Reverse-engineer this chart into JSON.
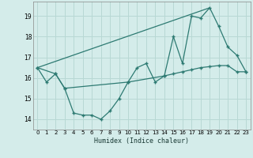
{
  "xlabel": "Humidex (Indice chaleur)",
  "bg_color": "#d4ecea",
  "grid_color": "#b8d8d4",
  "line_color": "#2d7a72",
  "xlim": [
    -0.5,
    23.5
  ],
  "ylim": [
    13.5,
    19.7
  ],
  "xticks": [
    0,
    1,
    2,
    3,
    4,
    5,
    6,
    7,
    8,
    9,
    10,
    11,
    12,
    13,
    14,
    15,
    16,
    17,
    18,
    19,
    20,
    21,
    22,
    23
  ],
  "yticks": [
    14,
    15,
    16,
    17,
    18,
    19
  ],
  "series1_x": [
    0,
    1,
    2,
    3,
    4,
    5,
    6,
    7,
    8,
    9,
    10,
    11,
    12,
    13,
    14,
    15,
    16,
    17,
    18,
    19,
    20,
    21,
    22,
    23
  ],
  "series1_y": [
    16.5,
    15.8,
    16.2,
    15.5,
    14.3,
    14.2,
    14.2,
    14.0,
    14.4,
    15.0,
    15.8,
    16.5,
    16.7,
    15.8,
    16.1,
    18.0,
    16.7,
    19.0,
    18.9,
    19.4,
    18.5,
    17.5,
    17.1,
    16.3
  ],
  "series2_x": [
    0,
    2,
    3,
    10,
    14,
    15,
    16,
    17,
    18,
    19,
    20,
    21,
    22,
    23
  ],
  "series2_y": [
    16.5,
    16.2,
    15.5,
    15.8,
    16.1,
    16.2,
    16.3,
    16.4,
    16.5,
    16.55,
    16.6,
    16.6,
    16.3,
    16.3
  ],
  "series3_x": [
    0,
    19
  ],
  "series3_y": [
    16.5,
    19.4
  ]
}
